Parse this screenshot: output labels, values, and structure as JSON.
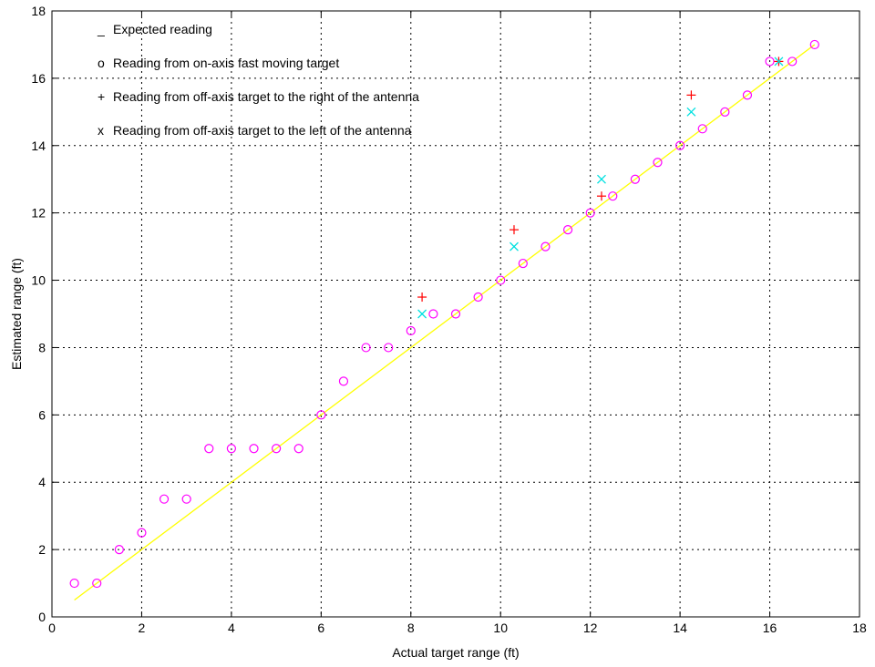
{
  "chart_data": {
    "type": "scatter",
    "title": "",
    "xlabel": "Actual target range (ft)",
    "ylabel": "Estimated range (ft)",
    "xlim": [
      0,
      18
    ],
    "ylim": [
      0,
      18
    ],
    "grid": true,
    "grid_style": "dotted",
    "x_ticks": [
      0,
      2,
      4,
      6,
      8,
      10,
      12,
      14,
      16,
      18
    ],
    "y_ticks": [
      0,
      2,
      4,
      6,
      8,
      10,
      12,
      14,
      16,
      18
    ],
    "legend_position": "top-left",
    "legend": [
      {
        "symbol": "_",
        "label": "Expected reading"
      },
      {
        "symbol": "o",
        "label": "Reading from on-axis fast moving target"
      },
      {
        "symbol": "+",
        "label": "Reading from off-axis target to the right of the antenna"
      },
      {
        "symbol": "x",
        "label": "Reading from off-axis target to the left of the antenna"
      }
    ],
    "series": [
      {
        "key": "expected",
        "marker": "line",
        "color": "#ffff00",
        "x": [
          0.5,
          17
        ],
        "y": [
          0.5,
          17
        ]
      },
      {
        "key": "onaxis",
        "marker": "o",
        "color": "#ff00ff",
        "x": [
          0.5,
          1,
          1.5,
          2,
          2.5,
          3,
          3.5,
          4,
          4.5,
          5,
          5.5,
          6,
          6.5,
          7,
          7.5,
          8,
          8.5,
          9,
          9.5,
          10,
          10.5,
          11,
          11.5,
          12,
          12.5,
          13,
          13.5,
          14,
          14.5,
          15,
          15.5,
          16,
          16.5,
          17
        ],
        "y": [
          1,
          1,
          2,
          2.5,
          3.5,
          3.5,
          5,
          5,
          5,
          5,
          5,
          6,
          7,
          8,
          8,
          8.5,
          9,
          9,
          9.5,
          10,
          10.5,
          11,
          11.5,
          12,
          12.5,
          13,
          13.5,
          14,
          14.5,
          15,
          15.5,
          16.5,
          16.5,
          17
        ]
      },
      {
        "key": "right",
        "marker": "+",
        "color": "#ff0000",
        "x": [
          8.25,
          10.3,
          12.25,
          14.25,
          16.2
        ],
        "y": [
          9.5,
          11.5,
          12.5,
          15.5,
          16.5
        ]
      },
      {
        "key": "left",
        "marker": "x",
        "color": "#00e0e0",
        "x": [
          8.25,
          10.3,
          12.25,
          14.25,
          16.2
        ],
        "y": [
          9,
          11,
          13,
          15,
          16.5
        ]
      }
    ]
  }
}
